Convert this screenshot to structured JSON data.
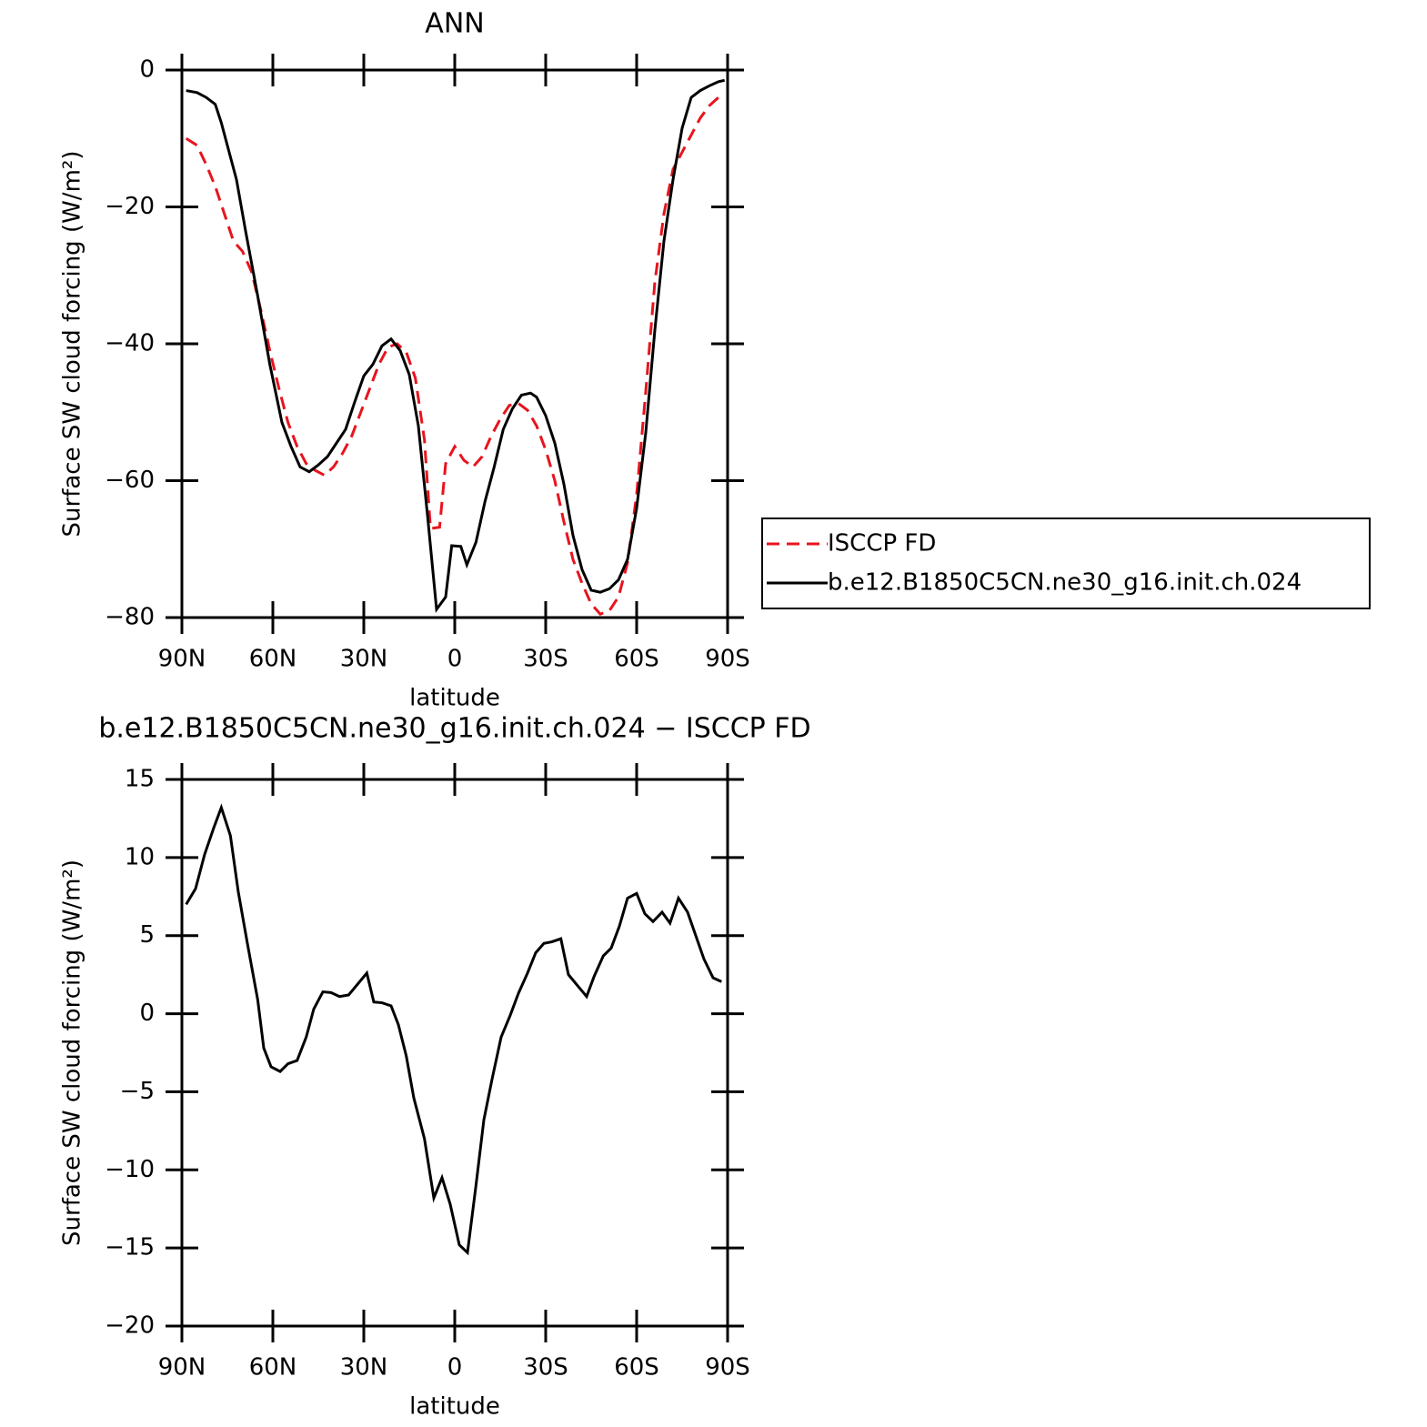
{
  "chart_data": [
    {
      "type": "line",
      "title": "ANN",
      "xlabel": "latitude",
      "ylabel": "Surface SW cloud forcing (W/m²)",
      "xlim": [
        90,
        -90
      ],
      "ylim": [
        -80,
        0
      ],
      "xticks": [
        {
          "value": 90,
          "label": "90N"
        },
        {
          "value": 60,
          "label": "60N"
        },
        {
          "value": 30,
          "label": "30N"
        },
        0,
        {
          "value": -30,
          "label": "30S"
        },
        {
          "value": -60,
          "label": "60S"
        },
        {
          "value": -90,
          "label": "90S"
        }
      ],
      "yticks": [
        0,
        {
          "value": -20,
          "label": "−20"
        },
        {
          "value": -40,
          "label": "−40"
        },
        {
          "value": -60,
          "label": "−60"
        },
        {
          "value": -80,
          "label": "−80"
        }
      ],
      "legend": "outside-right",
      "series": [
        {
          "name": "ISCCP FD",
          "color": "#e8141e",
          "line_style": "dashed",
          "x": [
            88.6,
            85,
            82,
            79,
            76,
            73,
            70,
            67,
            64,
            61,
            58,
            55,
            52,
            49,
            46,
            43,
            40,
            37,
            34,
            31,
            28,
            25,
            22,
            19,
            16,
            13,
            10,
            8,
            5,
            3,
            0,
            -3,
            -6,
            -9,
            -12,
            -15,
            -18,
            -21,
            -24,
            -27,
            -30,
            -33,
            -36,
            -39,
            -42,
            -45,
            -48,
            -51,
            -54,
            -57,
            -60,
            -63,
            -66,
            -69,
            -72,
            -75,
            -78,
            -81,
            -84,
            -87,
            -89
          ],
          "values": [
            -10,
            -11,
            -13.8,
            -17,
            -21,
            -25,
            -26.5,
            -29.5,
            -35,
            -41,
            -46.5,
            -51.5,
            -55,
            -57.5,
            -58.5,
            -59.2,
            -58,
            -56,
            -53.5,
            -50,
            -46.5,
            -43,
            -40.5,
            -40,
            -41.2,
            -45,
            -54,
            -67,
            -66.8,
            -57.5,
            -55,
            -57,
            -58,
            -56.5,
            -53.5,
            -51,
            -49,
            -48.7,
            -49.7,
            -52,
            -55.5,
            -60,
            -66,
            -71.5,
            -75,
            -78,
            -79.5,
            -79,
            -77,
            -72,
            -62,
            -47,
            -31,
            -21,
            -14.5,
            -12,
            -9.5,
            -7,
            -5.2,
            -4,
            -3.5
          ]
        },
        {
          "name": "b.e12.B1850C5CN.ne30_g16.init.ch.024",
          "color": "#000000",
          "line_style": "solid",
          "x": [
            88.6,
            85,
            82,
            79,
            77,
            72,
            69,
            65,
            61,
            57,
            54,
            51,
            48,
            45,
            42,
            39,
            36,
            33,
            30,
            27,
            24,
            21,
            18,
            15,
            12,
            9,
            6,
            3,
            1,
            -2,
            -4,
            -7,
            -10,
            -13,
            -16,
            -19,
            -22,
            -25,
            -27,
            -30,
            -33,
            -36,
            -39,
            -42,
            -45,
            -48,
            -51,
            -54,
            -57,
            -60,
            -63,
            -66,
            -69,
            -72,
            -75,
            -78,
            -81,
            -84,
            -87,
            -89
          ],
          "values": [
            -3,
            -3.3,
            -4,
            -5,
            -7.7,
            -16,
            -23.5,
            -33,
            -43,
            -51.5,
            -55,
            -58,
            -58.7,
            -57.7,
            -56.5,
            -54.5,
            -52.5,
            -48.5,
            -44.7,
            -43,
            -40.3,
            -39.3,
            -41,
            -44.5,
            -52,
            -65,
            -78.8,
            -77,
            -69.5,
            -69.6,
            -72.3,
            -69,
            -63,
            -58,
            -52.5,
            -49.5,
            -47.5,
            -47.2,
            -47.8,
            -50.5,
            -54.5,
            -60.5,
            -68,
            -73,
            -76,
            -76.3,
            -75.8,
            -74.5,
            -71.5,
            -64,
            -53,
            -38,
            -25,
            -16,
            -8.5,
            -4,
            -3,
            -2.3,
            -1.7,
            -1.5
          ]
        }
      ]
    },
    {
      "type": "line",
      "title": "b.e12.B1850C5CN.ne30_g16.init.ch.024 − ISCCP FD",
      "xlabel": "latitude",
      "ylabel": "Surface SW cloud forcing (W/m²)",
      "xlim": [
        90,
        -90
      ],
      "ylim": [
        -20,
        15
      ],
      "xticks": [
        {
          "value": 90,
          "label": "90N"
        },
        {
          "value": 60,
          "label": "60N"
        },
        {
          "value": 30,
          "label": "30N"
        },
        0,
        {
          "value": -30,
          "label": "30S"
        },
        {
          "value": -60,
          "label": "60S"
        },
        {
          "value": -90,
          "label": "90S"
        }
      ],
      "yticks": [
        15,
        10,
        5,
        0,
        {
          "value": -5,
          "label": "−5"
        },
        {
          "value": -10,
          "label": "−10"
        },
        {
          "value": -15,
          "label": "−15"
        },
        {
          "value": -20,
          "label": "−20"
        }
      ],
      "series": [
        {
          "color": "#000000",
          "line_style": "solid",
          "x": [
            88.6,
            85.5,
            82.5,
            79.5,
            77,
            74,
            71.4,
            68.4,
            65,
            63,
            60.6,
            57.6,
            55,
            52,
            49,
            46.5,
            43.5,
            40.8,
            38,
            35,
            29,
            26.7,
            24,
            21,
            18.6,
            16,
            13.5,
            10,
            6.9,
            4.2,
            1.5,
            -1.5,
            -4.2,
            -7,
            -9.6,
            -12.3,
            -15.3,
            -18.3,
            -21,
            -24,
            -26.7,
            -29.4,
            -32,
            -35,
            -37.5,
            -40.5,
            -43.5,
            -46,
            -49,
            -51.6,
            -54.3,
            -57,
            -60,
            -62.7,
            -65.4,
            -68.4,
            -71,
            -73.8,
            -76.8,
            -79.5,
            -82.2,
            -85.2,
            -88
          ],
          "values": [
            7,
            8,
            10.2,
            11.9,
            13.2,
            11.4,
            7.8,
            4.5,
            0.9,
            -2.2,
            -3.4,
            -3.7,
            -3.2,
            -3,
            -1.5,
            0.3,
            1.4,
            1.35,
            1.1,
            1.2,
            2.6,
            0.75,
            0.7,
            0.5,
            -0.7,
            -2.7,
            -5.4,
            -8,
            -11.8,
            -10.5,
            -12.2,
            -14.8,
            -15.3,
            -11,
            -6.8,
            -4.2,
            -1.5,
            -0.1,
            1.3,
            2.6,
            3.9,
            4.5,
            4.6,
            4.8,
            2.5,
            1.8,
            1.1,
            2.4,
            3.7,
            4.2,
            5.6,
            7.4,
            7.7,
            6.4,
            5.9,
            6.5,
            5.8,
            7.4,
            6.5,
            5,
            3.5,
            2.3,
            2.05
          ]
        }
      ]
    }
  ]
}
